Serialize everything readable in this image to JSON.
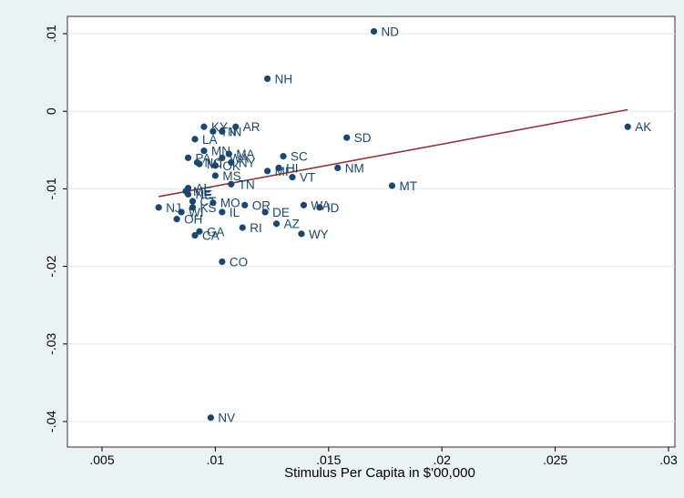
{
  "chart_data": {
    "type": "scatter",
    "title": "",
    "xlabel": "Stimulus Per Capita in $'00,000",
    "ylabel": "",
    "xlim": [
      0.005,
      0.03
    ],
    "ylim": [
      -0.04,
      0.01
    ],
    "x_ticks": [
      0.005,
      0.01,
      0.015,
      0.02,
      0.025,
      0.03
    ],
    "x_tick_labels": [
      ".005",
      ".01",
      ".015",
      ".02",
      ".025",
      ".03"
    ],
    "y_ticks": [
      0.01,
      0,
      -0.01,
      -0.02,
      -0.03,
      -0.04
    ],
    "y_tick_labels": [
      ".01",
      "0",
      "-.01",
      "-.02",
      "-.03",
      "-.04"
    ],
    "grid": "horizontal",
    "legend": "none",
    "colors": {
      "points": "#1a476f",
      "fit_line": "#90353b",
      "background": "#eaf2f3",
      "plot_bg": "#ffffff"
    },
    "points": [
      {
        "state": "ND",
        "x": 0.017,
        "y": 0.0103
      },
      {
        "state": "NH",
        "x": 0.0123,
        "y": 0.0042
      },
      {
        "state": "AK",
        "x": 0.0282,
        "y": -0.002
      },
      {
        "state": "KY",
        "x": 0.0095,
        "y": -0.002
      },
      {
        "state": "AR",
        "x": 0.0109,
        "y": -0.002
      },
      {
        "state": "TN",
        "x": 0.0099,
        "y": -0.0026
      },
      {
        "state": "IN",
        "x": 0.0103,
        "y": -0.0026
      },
      {
        "state": "SD",
        "x": 0.0158,
        "y": -0.0034
      },
      {
        "state": "LA",
        "x": 0.0091,
        "y": -0.0036
      },
      {
        "state": "MN",
        "x": 0.0095,
        "y": -0.0051
      },
      {
        "state": "MA",
        "x": 0.0106,
        "y": -0.0055
      },
      {
        "state": "SC",
        "x": 0.013,
        "y": -0.0058
      },
      {
        "state": "PA",
        "x": 0.0088,
        "y": -0.006
      },
      {
        "state": "WA",
        "x": 0.0103,
        "y": -0.006
      },
      {
        "state": "NC",
        "x": 0.0092,
        "y": -0.0066
      },
      {
        "state": "NY",
        "x": 0.0107,
        "y": -0.0066
      },
      {
        "state": "OK",
        "x": 0.01,
        "y": -0.007
      },
      {
        "state": "MT",
        "x": 0.0093,
        "y": -0.0068
      },
      {
        "state": "HI",
        "x": 0.0128,
        "y": -0.0073
      },
      {
        "state": "NM",
        "x": 0.0154,
        "y": -0.0073
      },
      {
        "state": "MI",
        "x": 0.0123,
        "y": -0.0077
      },
      {
        "state": "MS",
        "x": 0.01,
        "y": -0.0083
      },
      {
        "state": "VT",
        "x": 0.0134,
        "y": -0.0085
      },
      {
        "state": "TN",
        "x": 0.0107,
        "y": -0.0094
      },
      {
        "state": "MT",
        "x": 0.0178,
        "y": -0.0096
      },
      {
        "state": "AL",
        "x": 0.0088,
        "y": -0.0099
      },
      {
        "state": "ME",
        "x": 0.0087,
        "y": -0.0103
      },
      {
        "state": "NE",
        "x": 0.0088,
        "y": -0.0107
      },
      {
        "state": "CT",
        "x": 0.009,
        "y": -0.0116
      },
      {
        "state": "MO",
        "x": 0.0099,
        "y": -0.0118
      },
      {
        "state": "OR",
        "x": 0.0113,
        "y": -0.0121
      },
      {
        "state": "WA",
        "x": 0.0139,
        "y": -0.0121
      },
      {
        "state": "ID",
        "x": 0.0146,
        "y": -0.0124
      },
      {
        "state": "NJ",
        "x": 0.0075,
        "y": -0.0124
      },
      {
        "state": "KS",
        "x": 0.009,
        "y": -0.0124
      },
      {
        "state": "WI",
        "x": 0.0085,
        "y": -0.013
      },
      {
        "state": "IL",
        "x": 0.0103,
        "y": -0.013
      },
      {
        "state": "DE",
        "x": 0.0122,
        "y": -0.013
      },
      {
        "state": "OH",
        "x": 0.0083,
        "y": -0.0139
      },
      {
        "state": "AZ",
        "x": 0.0127,
        "y": -0.0145
      },
      {
        "state": "RI",
        "x": 0.0112,
        "y": -0.015
      },
      {
        "state": "GA",
        "x": 0.0093,
        "y": -0.0155
      },
      {
        "state": "WY",
        "x": 0.0138,
        "y": -0.0158
      },
      {
        "state": "CA",
        "x": 0.0091,
        "y": -0.016
      },
      {
        "state": "CO",
        "x": 0.0103,
        "y": -0.0194
      },
      {
        "state": "NV",
        "x": 0.0098,
        "y": -0.0395
      }
    ],
    "fit_line": {
      "x": [
        0.0075,
        0.0282
      ],
      "y": [
        -0.011,
        0.0002
      ]
    }
  }
}
